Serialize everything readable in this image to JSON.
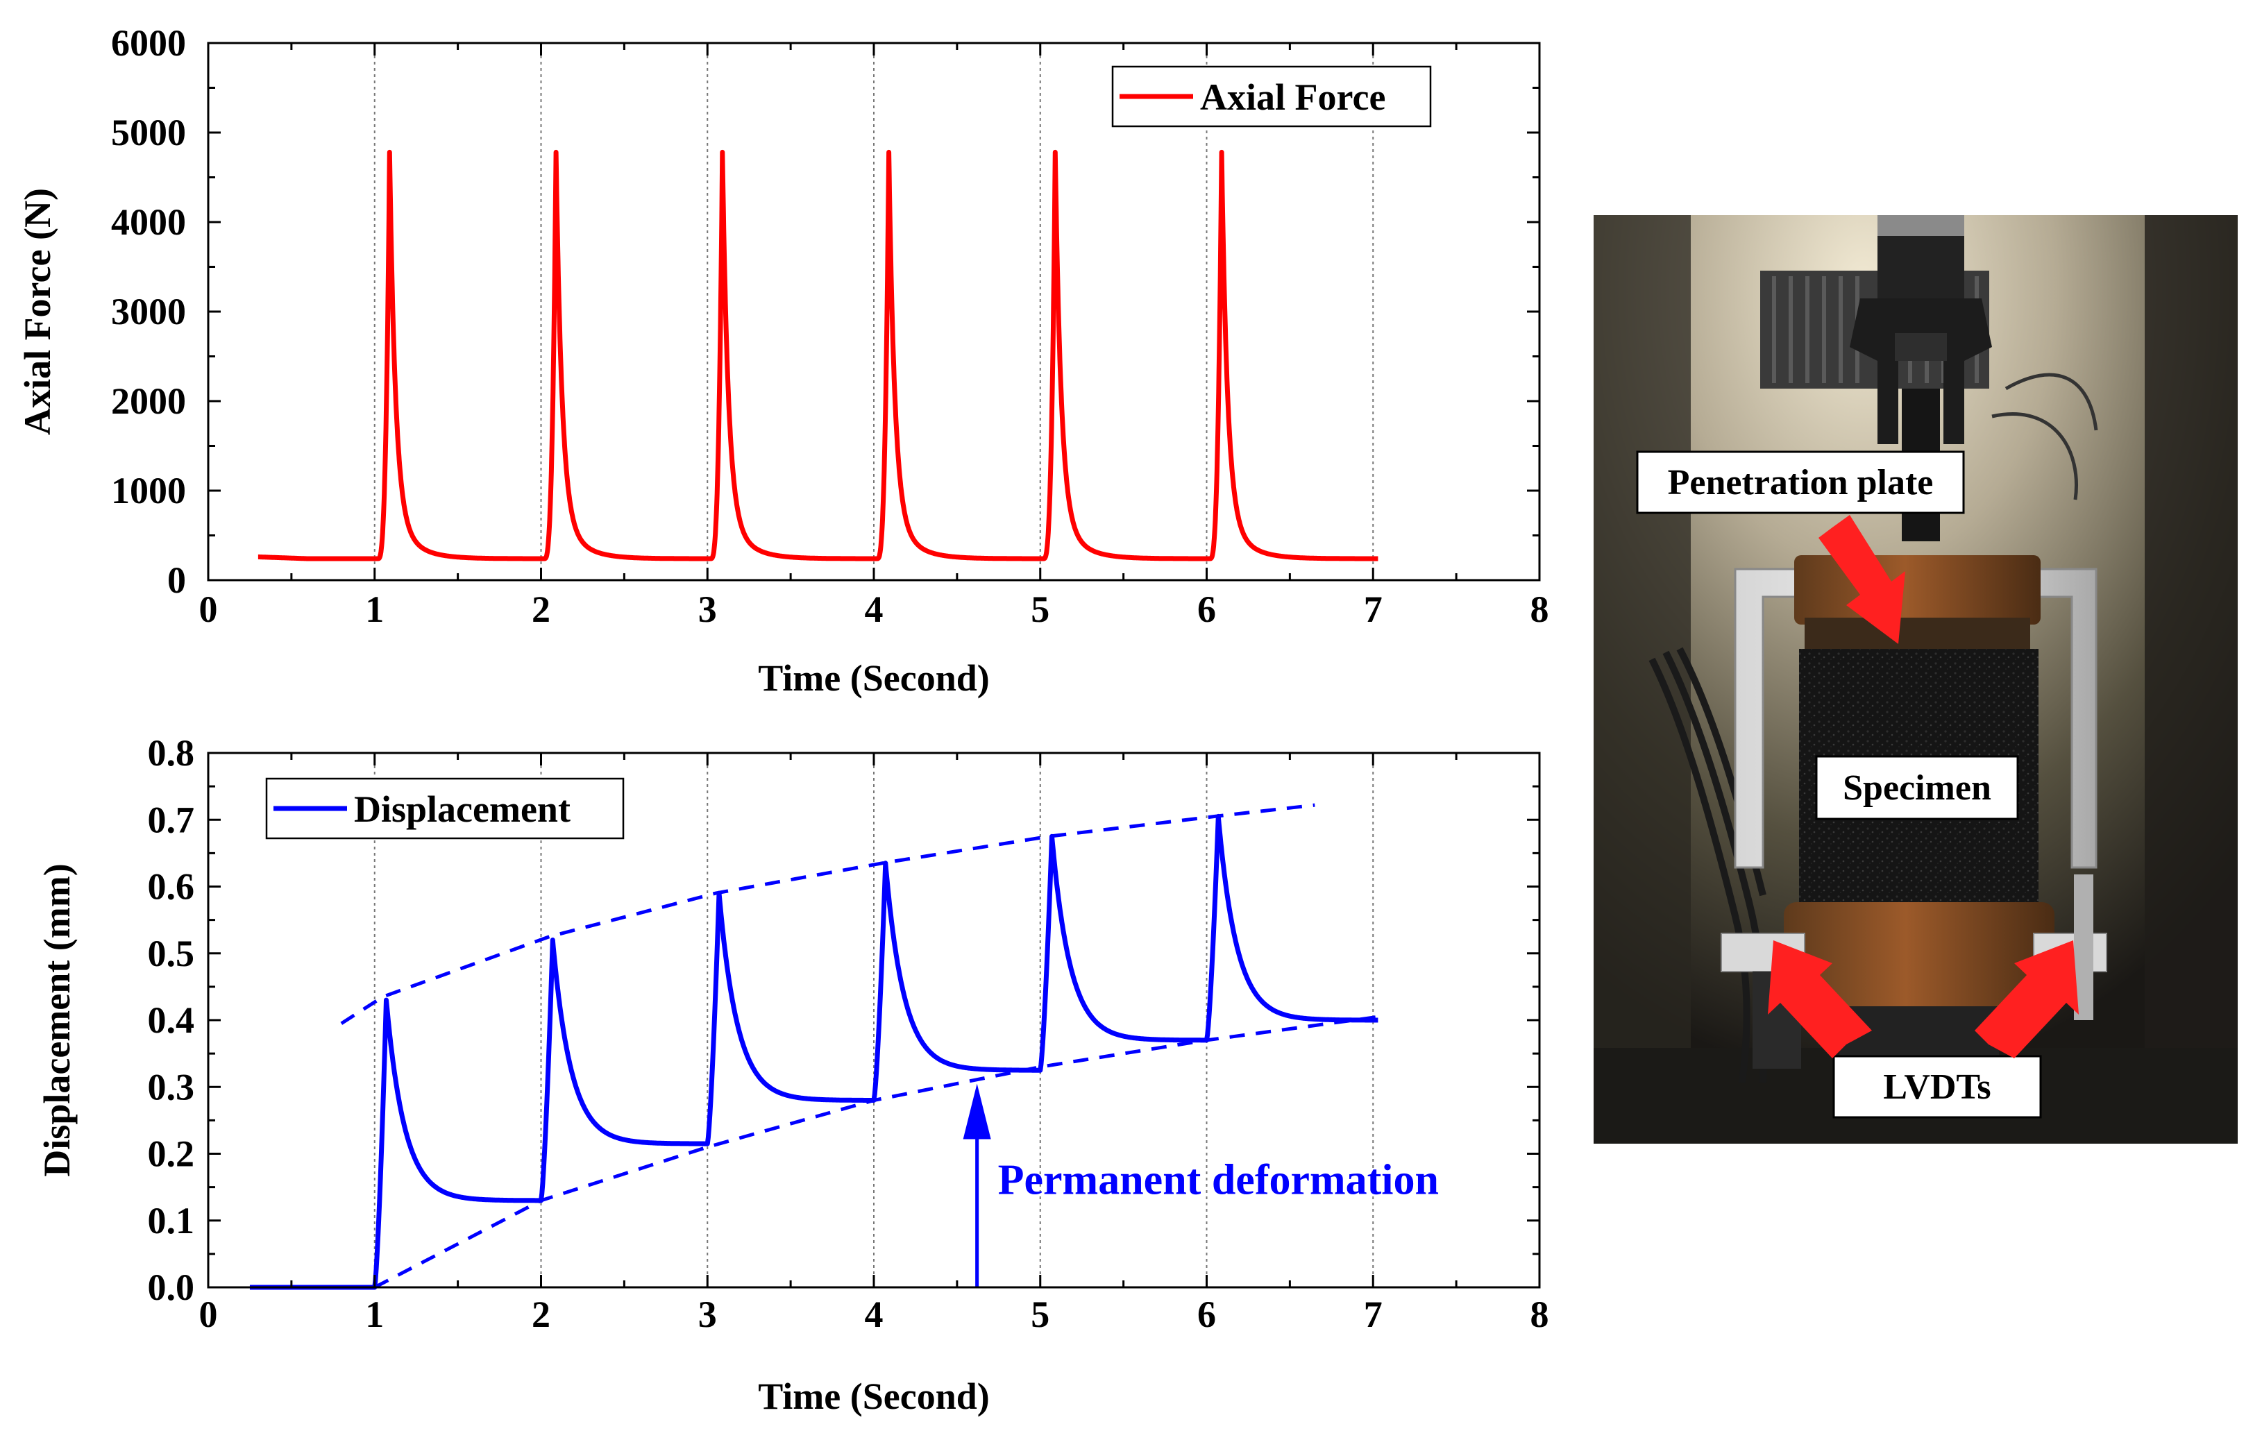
{
  "chart_data": [
    {
      "type": "line",
      "title": "",
      "xlabel": "Time (Second)",
      "ylabel": "Axial Force (N)",
      "xlim": [
        0,
        8
      ],
      "ylim": [
        0,
        6000
      ],
      "x_ticks": [
        0,
        1,
        2,
        3,
        4,
        5,
        6,
        7,
        8
      ],
      "y_ticks": [
        0,
        1000,
        2000,
        3000,
        4000,
        5000,
        6000
      ],
      "x_tick_labels": [
        "0",
        "1",
        "2",
        "3",
        "4",
        "5",
        "6",
        "7",
        "8"
      ],
      "y_tick_labels": [
        "0",
        "1000",
        "2000",
        "3000",
        "4000",
        "5000",
        "6000"
      ],
      "vertical_gridlines_at": [
        1,
        2,
        3,
        4,
        5,
        6,
        7
      ],
      "legend_position": "top-right",
      "series": [
        {
          "name": "Axial Force",
          "color": "#ff0000",
          "baseline": 240,
          "start_value": 260,
          "x_range": [
            0.3,
            7.03
          ],
          "peaks": [
            {
              "x": 1.09,
              "y": 4780
            },
            {
              "x": 2.09,
              "y": 4780
            },
            {
              "x": 3.09,
              "y": 4780
            },
            {
              "x": 4.09,
              "y": 4780
            },
            {
              "x": 5.09,
              "y": 4780
            },
            {
              "x": 6.09,
              "y": 4780
            }
          ]
        }
      ]
    },
    {
      "type": "line",
      "title": "",
      "xlabel": "Time (Second)",
      "ylabel": "Displacement (mm)",
      "xlim": [
        0,
        8
      ],
      "ylim": [
        0,
        0.8
      ],
      "x_ticks": [
        0,
        1,
        2,
        3,
        4,
        5,
        6,
        7,
        8
      ],
      "y_ticks": [
        0,
        0.1,
        0.2,
        0.3,
        0.4,
        0.5,
        0.6,
        0.7,
        0.8
      ],
      "x_tick_labels": [
        "0",
        "1",
        "2",
        "3",
        "4",
        "5",
        "6",
        "7",
        "8"
      ],
      "y_tick_labels": [
        "0.0",
        "0.1",
        "0.2",
        "0.3",
        "0.4",
        "0.5",
        "0.6",
        "0.7",
        "0.8"
      ],
      "vertical_gridlines_at": [
        1,
        2,
        3,
        4,
        5,
        6,
        7
      ],
      "legend_position": "top-left",
      "series": [
        {
          "name": "Displacement",
          "color": "#0000ff",
          "initial": {
            "x_start": 0.25,
            "x_end": 1.0,
            "y": 0.0
          },
          "cycles": [
            {
              "start": 1.0,
              "start_y": 0.0,
              "peak_x": 1.07,
              "peak_y": 0.43,
              "end_x": 2.0,
              "end_y": 0.13
            },
            {
              "start": 2.0,
              "start_y": 0.13,
              "peak_x": 2.07,
              "peak_y": 0.52,
              "end_x": 3.0,
              "end_y": 0.215
            },
            {
              "start": 3.0,
              "start_y": 0.215,
              "peak_x": 3.07,
              "peak_y": 0.59,
              "end_x": 4.0,
              "end_y": 0.28
            },
            {
              "start": 4.0,
              "start_y": 0.28,
              "peak_x": 4.07,
              "peak_y": 0.635,
              "end_x": 5.0,
              "end_y": 0.325
            },
            {
              "start": 5.0,
              "start_y": 0.325,
              "peak_x": 5.07,
              "peak_y": 0.675,
              "end_x": 6.0,
              "end_y": 0.37
            },
            {
              "start": 6.0,
              "start_y": 0.37,
              "peak_x": 6.07,
              "peak_y": 0.705,
              "end_x": 7.03,
              "end_y": 0.4
            }
          ]
        }
      ],
      "envelopes": [
        {
          "name": "upper-envelope",
          "style": "dashed",
          "points": [
            [
              0.8,
              0.395
            ],
            [
              1.05,
              0.435
            ],
            [
              2.05,
              0.525
            ],
            [
              3.05,
              0.59
            ],
            [
              4.05,
              0.635
            ],
            [
              5.05,
              0.675
            ],
            [
              6.05,
              0.705
            ],
            [
              6.65,
              0.722
            ]
          ]
        },
        {
          "name": "lower-envelope",
          "style": "dashed",
          "points": [
            [
              1.0,
              0.0
            ],
            [
              2.0,
              0.13
            ],
            [
              3.0,
              0.21
            ],
            [
              4.0,
              0.28
            ],
            [
              5.0,
              0.33
            ],
            [
              6.0,
              0.37
            ],
            [
              7.03,
              0.405
            ]
          ]
        }
      ],
      "annotations": [
        {
          "text": "Permanent deformation",
          "arrow_x": 4.62,
          "arrow_from_y": 0.0,
          "arrow_to_y": 0.305,
          "color": "#0000ff"
        }
      ]
    }
  ],
  "photo": {
    "description_labels": {
      "penetration_plate": "Penetration plate",
      "specimen": "Specimen",
      "lvdts": "LVDTs"
    },
    "arrow_color": "#ff2020"
  }
}
